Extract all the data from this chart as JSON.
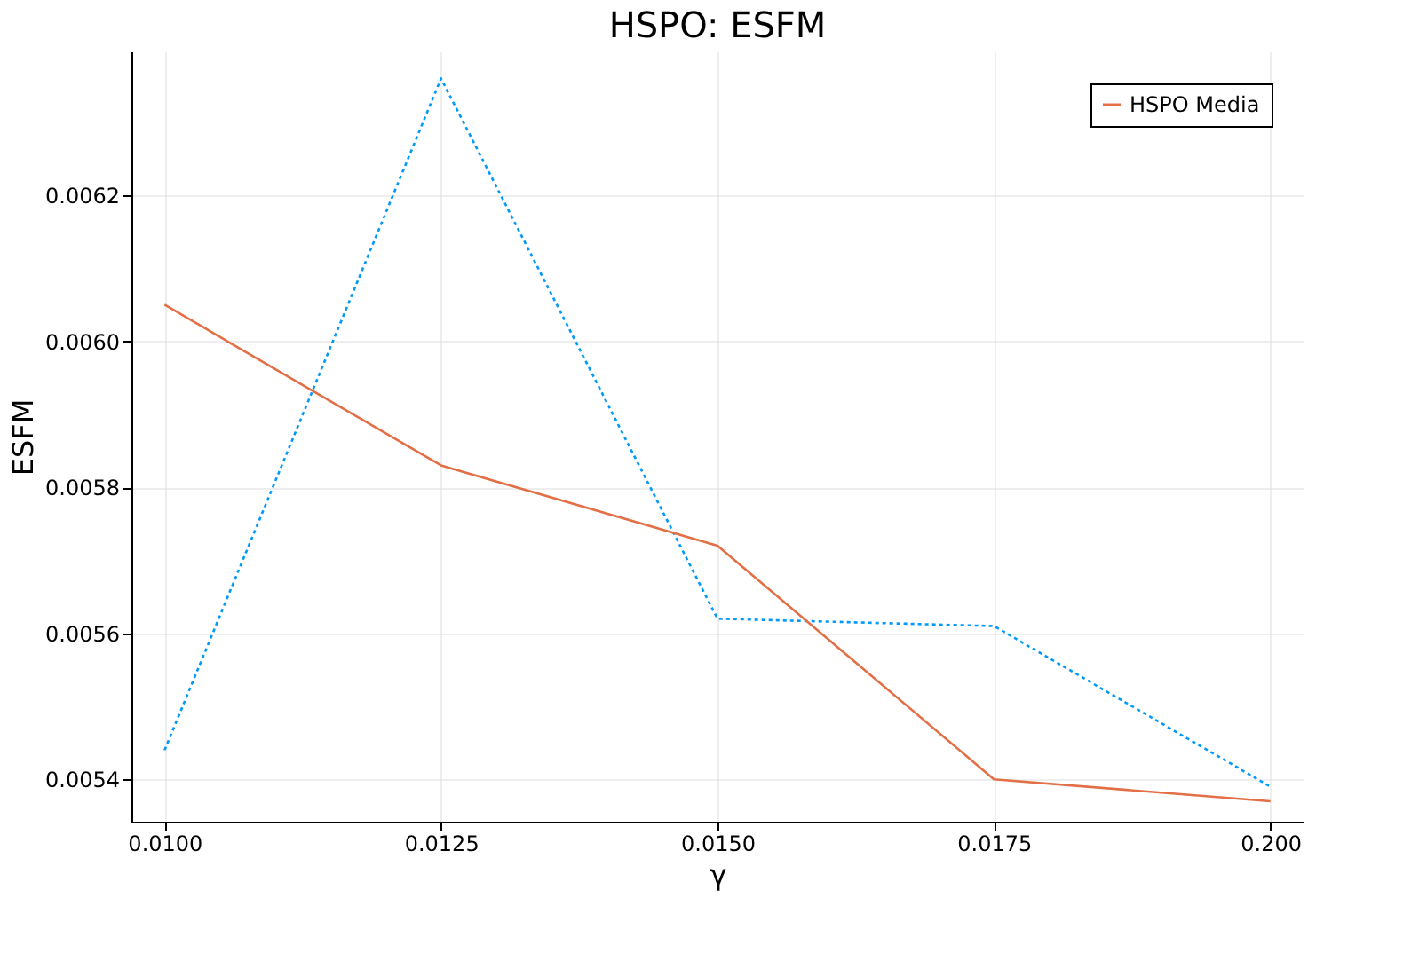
{
  "chart_data": {
    "type": "line",
    "title": "HSPO: ESFM",
    "xlabel": "γ",
    "ylabel": "ESFM",
    "categories": [
      "0.0100",
      "0.0125",
      "0.0150",
      "0.0175",
      "0.200"
    ],
    "series": [
      {
        "color": "#009af9",
        "line_style": "dotted",
        "values": [
          0.00544,
          0.00636,
          0.00562,
          0.00561,
          0.00539
        ]
      },
      {
        "name": "HSPO Media",
        "color": "#e26f46",
        "line_style": "solid",
        "values": [
          0.00605,
          0.00583,
          0.00572,
          0.0054,
          0.00537
        ]
      }
    ],
    "ylim": [
      0.005342,
      0.006397
    ],
    "yticks": [
      {
        "value": 0.0054,
        "label": "0.0054"
      },
      {
        "value": 0.0056,
        "label": "0.0056"
      },
      {
        "value": 0.0058,
        "label": "0.0058"
      },
      {
        "value": 0.006,
        "label": "0.0060"
      },
      {
        "value": 0.0062,
        "label": "0.0062"
      }
    ],
    "grid": true,
    "legend": "top right",
    "marker": "none"
  }
}
